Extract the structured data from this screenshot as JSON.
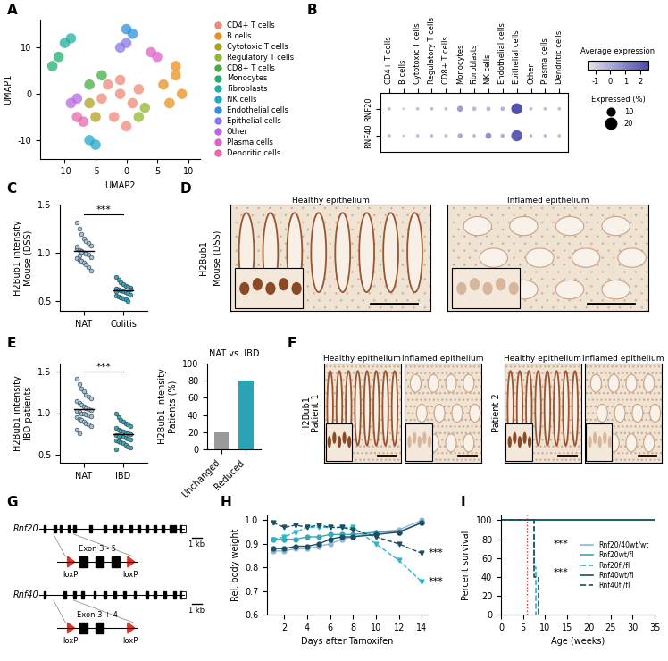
{
  "chart_data": [
    {
      "panel": "A",
      "type": "scatter",
      "x_label": "UMAP2",
      "y_label": "UMAP1",
      "xlim": [
        -14,
        12
      ],
      "ylim": [
        -14,
        16
      ],
      "xticks": [
        -10,
        -5,
        0,
        5,
        10
      ],
      "yticks": [
        -10,
        0,
        10
      ],
      "legend": "center left",
      "series": [
        {
          "name": "CD4+ T cells",
          "color": "#f08878",
          "x": [
            -3,
            -1,
            1,
            -2,
            0,
            -4,
            2,
            -1
          ],
          "y": [
            2,
            0,
            -2,
            -5,
            -7,
            -1,
            1,
            3
          ]
        },
        {
          "name": "B cells",
          "color": "#e8901c",
          "x": [
            6,
            8,
            9,
            7,
            8
          ],
          "y": [
            2,
            4,
            0,
            -2,
            6
          ]
        },
        {
          "name": "Cytotoxic T cells",
          "color": "#b0a020",
          "x": [
            -6,
            -5
          ],
          "y": [
            -2,
            -5
          ]
        },
        {
          "name": "Regulatory T cells",
          "color": "#90b830",
          "x": [
            2,
            3
          ],
          "y": [
            -5,
            -3
          ]
        },
        {
          "name": "CD8+ T cells",
          "color": "#40b040",
          "x": [
            -4,
            -6
          ],
          "y": [
            4,
            2
          ]
        },
        {
          "name": "Monocytes",
          "color": "#20b070",
          "x": [
            -12,
            -11
          ],
          "y": [
            6,
            8
          ]
        },
        {
          "name": "Fibroblasts",
          "color": "#20b0a0",
          "x": [
            -10,
            -9
          ],
          "y": [
            11,
            12
          ]
        },
        {
          "name": "NK cells",
          "color": "#20a8c8",
          "x": [
            -6,
            -5
          ],
          "y": [
            -10,
            -11
          ]
        },
        {
          "name": "Endothelial cells",
          "color": "#3090e0",
          "x": [
            0,
            1
          ],
          "y": [
            14,
            13
          ]
        },
        {
          "name": "Epithelial cells",
          "color": "#8878e8",
          "x": [
            -1,
            0
          ],
          "y": [
            10,
            11
          ]
        },
        {
          "name": "Other",
          "color": "#b868e0",
          "x": [
            -8,
            -9
          ],
          "y": [
            -1,
            -2
          ]
        },
        {
          "name": "Plasma cells",
          "color": "#e060c8",
          "x": [
            4,
            5
          ],
          "y": [
            9,
            8
          ]
        },
        {
          "name": "Dendritic cells",
          "color": "#e868a8",
          "x": [
            -8,
            -7
          ],
          "y": [
            -5,
            -6
          ]
        }
      ]
    },
    {
      "panel": "B",
      "type": "dotplot",
      "categories": [
        "CD4+ T cells",
        "B cells",
        "Cytotoxic T cells",
        "Regulatory T cells",
        "CD8+ T cells",
        "Monocytes",
        "Fibroblasts",
        "NK cells",
        "Endothelial cells",
        "Epithelial cells",
        "Other",
        "Plasma cells",
        "Dendritic cells"
      ],
      "y_categories": [
        "RNF20",
        "RNF40"
      ],
      "avg_expression": [
        [
          -0.6,
          -0.7,
          -0.6,
          -0.5,
          -0.6,
          0.3,
          -0.4,
          -0.3,
          -0.2,
          2.3,
          -0.5,
          -0.5,
          -0.6
        ],
        [
          -0.6,
          -0.7,
          -0.6,
          -0.5,
          -0.6,
          0.0,
          -0.4,
          0.6,
          -0.2,
          2.0,
          -0.5,
          -0.5,
          -0.6
        ]
      ],
      "pct_expressed": [
        [
          2,
          1,
          2,
          2,
          2,
          6,
          3,
          3,
          3,
          20,
          2,
          2,
          2
        ],
        [
          2,
          1,
          2,
          2,
          2,
          4,
          2,
          6,
          3,
          20,
          2,
          2,
          2
        ]
      ],
      "colorbar_label": "Average expression",
      "color_range": [
        -1.5,
        2.5
      ],
      "color_ticks": [
        -1,
        0,
        1,
        2
      ],
      "size_label": "Expressed (%)",
      "size_ticks": [
        10,
        20
      ]
    },
    {
      "panel": "C",
      "type": "scatter",
      "y_label": "H2Bub1 intensity\nMouse (DSS)",
      "categories": [
        "NAT",
        "Colitis"
      ],
      "colors": [
        "#9cc3dc",
        "#3aa6b9"
      ],
      "values": [
        [
          1.32,
          1.25,
          1.2,
          1.15,
          1.12,
          1.1,
          1.08,
          1.05,
          1.03,
          1.02,
          1.0,
          0.99,
          0.98,
          0.96,
          0.95,
          0.93,
          0.92,
          0.9,
          0.88,
          0.85,
          0.82,
          1.07,
          0.97,
          1.01
        ],
        [
          0.75,
          0.72,
          0.7,
          0.68,
          0.66,
          0.65,
          0.64,
          0.63,
          0.62,
          0.61,
          0.6,
          0.59,
          0.58,
          0.57,
          0.56,
          0.55,
          0.54,
          0.53,
          0.52,
          0.5,
          0.62,
          0.6
        ]
      ],
      "ylim": [
        0.4,
        1.5
      ],
      "yticks": [
        0.5,
        1.0,
        1.5
      ],
      "annotations": [
        {
          "text": "***",
          "x": 0.5,
          "y": 1.4
        }
      ]
    },
    {
      "panel": "E",
      "type": "scatter",
      "y_label": "H2Bub1 intensity\nIBD patients",
      "categories": [
        "NAT",
        "IBD"
      ],
      "colors": [
        "#9cc3dc",
        "#3aa6b9"
      ],
      "values": [
        [
          1.42,
          1.35,
          1.3,
          1.26,
          1.22,
          1.2,
          1.18,
          1.15,
          1.12,
          1.1,
          1.08,
          1.06,
          1.05,
          1.04,
          1.03,
          1.02,
          1.0,
          0.99,
          0.98,
          0.97,
          0.96,
          0.95,
          0.93,
          0.92,
          0.9,
          0.88,
          0.86,
          0.84,
          0.8,
          0.76
        ],
        [
          1.0,
          0.95,
          0.92,
          0.9,
          0.88,
          0.86,
          0.84,
          0.82,
          0.8,
          0.79,
          0.78,
          0.77,
          0.76,
          0.75,
          0.74,
          0.73,
          0.72,
          0.71,
          0.7,
          0.69,
          0.68,
          0.67,
          0.66,
          0.65,
          0.64,
          0.62,
          0.6,
          0.58,
          0.56,
          0.72
        ]
      ],
      "ylim": [
        0.4,
        1.6
      ],
      "yticks": [
        0.5,
        1.0,
        1.5
      ],
      "annotations": [
        {
          "text": "***",
          "x": 0.5,
          "y": 1.5
        }
      ]
    },
    {
      "panel": "E",
      "type": "bar",
      "title": "NAT vs. IBD",
      "y_label": "H2Bub1 intensity\nPatients (%)",
      "categories": [
        "Unchanged",
        "Reduced"
      ],
      "values": [
        20,
        80
      ],
      "colors": [
        "#9a9a9a",
        "#2aa3b5"
      ],
      "ylim": [
        0,
        100
      ],
      "yticks": [
        0,
        20,
        40,
        60,
        80,
        100
      ]
    },
    {
      "panel": "H",
      "type": "line",
      "x_label": "Days after Tamoxifen",
      "y_label": "Rel. body weight",
      "x": [
        1,
        2,
        3,
        4,
        5,
        6,
        7,
        8,
        10,
        12,
        14
      ],
      "xlim": [
        0.5,
        14.5
      ],
      "ylim": [
        0.6,
        1.02
      ],
      "xticks": [
        2,
        4,
        6,
        8,
        10,
        12,
        14
      ],
      "yticks": [
        0.6,
        0.7,
        0.8,
        0.9,
        1.0
      ],
      "series": [
        {
          "color": "#8fb4dc",
          "marker": "circle",
          "line_style": "solid",
          "values": [
            0.87,
            0.87,
            0.88,
            0.88,
            0.89,
            0.9,
            0.92,
            0.93,
            0.95,
            0.96,
            1.0
          ]
        },
        {
          "color": "#3aa6b9",
          "marker": "circle",
          "line_style": "solid",
          "values": [
            0.92,
            0.92,
            0.92,
            0.93,
            0.93,
            0.94,
            0.94,
            0.94,
            0.95,
            0.95,
            0.99
          ]
        },
        {
          "color": "#2bb8cc",
          "marker": "triangle_down",
          "line_style": "dashed",
          "values": [
            0.92,
            0.93,
            0.95,
            0.97,
            0.97,
            0.97,
            0.97,
            0.97,
            0.9,
            0.83,
            0.74
          ]
        },
        {
          "color": "#1d4f5f",
          "marker": "circle",
          "line_style": "solid",
          "values": [
            0.88,
            0.88,
            0.89,
            0.89,
            0.9,
            0.92,
            0.93,
            0.93,
            0.94,
            0.95,
            0.99
          ]
        },
        {
          "color": "#1d4f5f",
          "marker": "triangle_down",
          "line_style": "dashed",
          "values": [
            0.99,
            0.97,
            0.98,
            0.97,
            0.98,
            0.97,
            0.97,
            0.96,
            0.93,
            0.9,
            0.86
          ]
        }
      ],
      "annotations": [
        {
          "text": "***",
          "x": 14.6,
          "y": 0.86
        },
        {
          "text": "***",
          "x": 14.6,
          "y": 0.74
        }
      ]
    },
    {
      "panel": "I",
      "type": "step",
      "x_label": "Age (weeks)",
      "y_label": "Percent survival",
      "xlim": [
        0,
        35
      ],
      "ylim": [
        0,
        105
      ],
      "xticks": [
        0,
        5,
        10,
        15,
        20,
        25,
        30,
        35
      ],
      "yticks": [
        0,
        20,
        40,
        60,
        80,
        100
      ],
      "legend": "center right",
      "reference_x": 6,
      "series": [
        {
          "name": "Rnf20/40wt/wt",
          "color": "#8fb4dc",
          "line_style": "solid",
          "x": [
            0,
            35
          ],
          "values": [
            100,
            100
          ]
        },
        {
          "name": "Rnf20wt/fl",
          "color": "#3aa6b9",
          "line_style": "solid",
          "x": [
            0,
            35
          ],
          "values": [
            100,
            100
          ]
        },
        {
          "name": "Rnf20fl/fl",
          "color": "#2bb8cc",
          "line_style": "dashed",
          "x": [
            0,
            7,
            7.5,
            8
          ],
          "values": [
            100,
            100,
            50,
            0
          ]
        },
        {
          "name": "Rnf40wt/fl",
          "color": "#1d4f5f",
          "line_style": "solid",
          "x": [
            0,
            35
          ],
          "values": [
            100,
            100
          ]
        },
        {
          "name": "Rnf40fl/fl",
          "color": "#1d4f5f",
          "line_style": "dashed",
          "x": [
            0,
            7,
            7.5,
            8.5
          ],
          "values": [
            100,
            100,
            40,
            0
          ]
        }
      ],
      "annotations": [
        {
          "text": "***",
          "x": 12,
          "y": 75
        },
        {
          "text": "***",
          "x": 12,
          "y": 45
        }
      ]
    }
  ],
  "micrographs": [
    {
      "panel": "D",
      "stain": "H2Bub1",
      "groups": [
        {
          "name": "Mouse (DSS)",
          "images": [
            "Healthy epithelium",
            "Inflamed epithelium"
          ]
        }
      ]
    },
    {
      "panel": "F",
      "stain": "H2Bub1",
      "groups": [
        {
          "name": "Patient 1",
          "images": [
            "Healthy epithelium",
            "Inflamed epithelium"
          ]
        },
        {
          "name": "Patient 2",
          "images": [
            "Healthy epithelium",
            "Inflamed epithelium"
          ]
        }
      ]
    }
  ],
  "diagram": {
    "panel": "G",
    "genes": [
      {
        "name": "Rnf20",
        "scale": "1 kb",
        "floxed": "Exon 3 - 5",
        "sites": [
          "loxP",
          "loxP"
        ]
      },
      {
        "name": "Rnf40",
        "scale": "1 kb",
        "floxed": "Exon 3 + 4",
        "sites": [
          "loxP",
          "loxP"
        ]
      }
    ]
  }
}
